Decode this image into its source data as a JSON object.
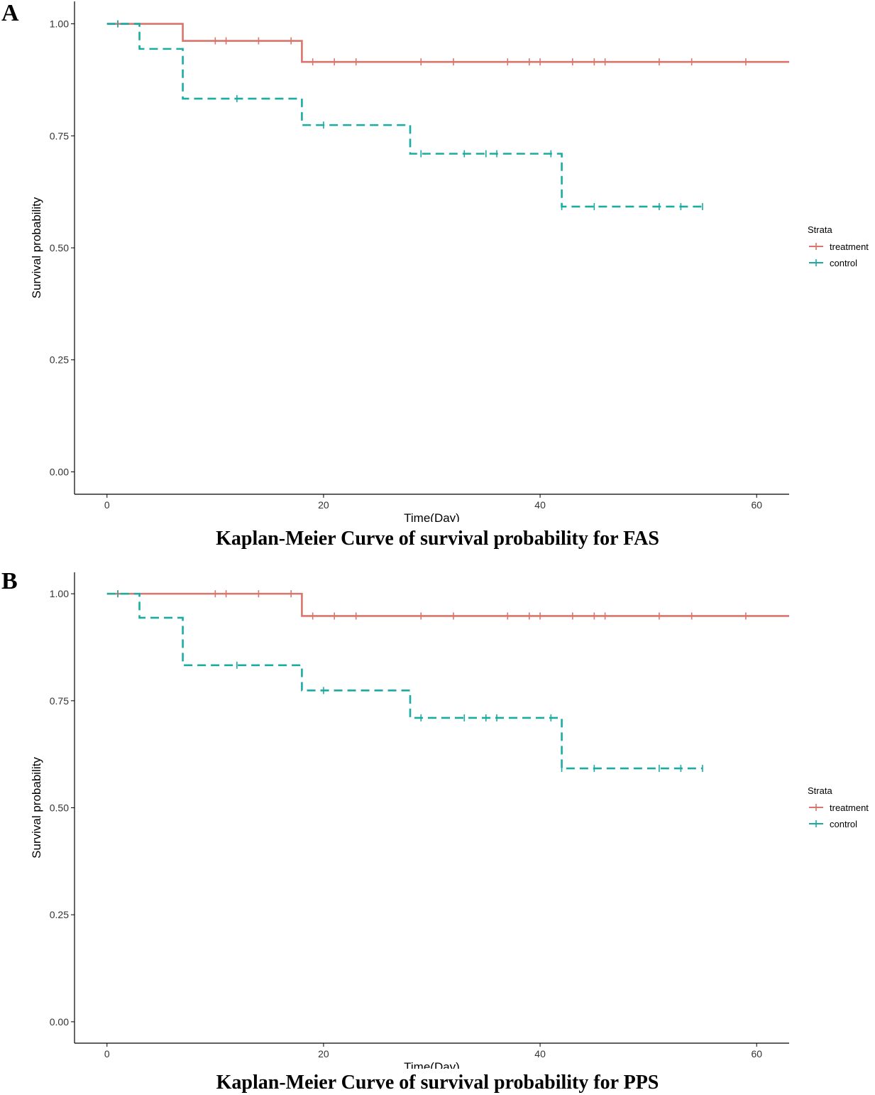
{
  "colors": {
    "treatment": "#D9756B",
    "control": "#1AABA3",
    "axis": "#000000",
    "tick_text": "#333333"
  },
  "chart_data": [
    {
      "type": "line",
      "subtype": "kaplan-meier",
      "panel_label": "A",
      "title": "Kaplan-Meier Curve of survival probability for FAS",
      "xlabel": "Time(Day)",
      "ylabel": "Survival probability",
      "xlim": [
        -3,
        63
      ],
      "ylim": [
        -0.05,
        1.05
      ],
      "x_ticks": [
        0,
        20,
        40,
        60
      ],
      "y_ticks": [
        0.0,
        0.25,
        0.5,
        0.75,
        1.0
      ],
      "y_tick_labels": [
        "0.00",
        "0.25",
        "0.50",
        "0.75",
        "1.00"
      ],
      "grid": false,
      "legend": {
        "title": "Strata",
        "position": "right"
      },
      "series": [
        {
          "name": "treatment",
          "style": "solid",
          "steps": [
            [
              0,
              1.0
            ],
            [
              7,
              0.962
            ],
            [
              18,
              0.915
            ],
            [
              63,
              0.915
            ]
          ],
          "censor_times": [
            1,
            10,
            11,
            14,
            17,
            19,
            21,
            23,
            29,
            32,
            37,
            39,
            40,
            43,
            45,
            46,
            51,
            54,
            59
          ]
        },
        {
          "name": "control",
          "style": "dashed",
          "steps": [
            [
              0,
              1.0
            ],
            [
              3,
              0.944
            ],
            [
              7,
              0.833
            ],
            [
              18,
              0.774
            ],
            [
              28,
              0.71
            ],
            [
              42,
              0.592
            ],
            [
              55,
              0.592
            ]
          ],
          "censor_times": [
            1,
            12,
            20,
            29,
            33,
            35,
            36,
            41,
            42,
            45,
            51,
            53,
            55
          ]
        }
      ]
    },
    {
      "type": "line",
      "subtype": "kaplan-meier",
      "panel_label": "B",
      "title": "Kaplan-Meier Curve of survival probability for PPS",
      "xlabel": "Time(Day)",
      "ylabel": "Survival probability",
      "xlim": [
        -3,
        63
      ],
      "ylim": [
        -0.05,
        1.05
      ],
      "x_ticks": [
        0,
        20,
        40,
        60
      ],
      "y_ticks": [
        0.0,
        0.25,
        0.5,
        0.75,
        1.0
      ],
      "y_tick_labels": [
        "0.00",
        "0.25",
        "0.50",
        "0.75",
        "1.00"
      ],
      "grid": false,
      "legend": {
        "title": "Strata",
        "position": "right"
      },
      "series": [
        {
          "name": "treatment",
          "style": "solid",
          "steps": [
            [
              0,
              1.0
            ],
            [
              18,
              0.948
            ],
            [
              63,
              0.948
            ]
          ],
          "censor_times": [
            1,
            10,
            11,
            14,
            17,
            19,
            21,
            23,
            29,
            32,
            37,
            39,
            40,
            43,
            45,
            46,
            51,
            54,
            59
          ]
        },
        {
          "name": "control",
          "style": "dashed",
          "steps": [
            [
              0,
              1.0
            ],
            [
              3,
              0.944
            ],
            [
              7,
              0.833
            ],
            [
              18,
              0.774
            ],
            [
              28,
              0.71
            ],
            [
              42,
              0.592
            ],
            [
              55,
              0.592
            ]
          ],
          "censor_times": [
            1,
            12,
            20,
            29,
            33,
            35,
            36,
            41,
            42,
            45,
            51,
            53,
            55
          ]
        }
      ]
    }
  ]
}
